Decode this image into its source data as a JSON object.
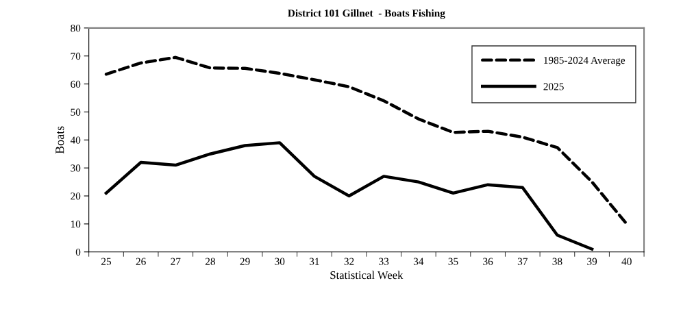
{
  "chart_data": {
    "type": "line",
    "title": "District 101 Gillnet  - Boats Fishing",
    "xlabel": "Statistical Week",
    "ylabel": "Boats",
    "categories": [
      "25",
      "26",
      "27",
      "28",
      "29",
      "30",
      "31",
      "32",
      "33",
      "34",
      "35",
      "36",
      "37",
      "38",
      "39",
      "40"
    ],
    "series": [
      {
        "name": "1985-2024 Average",
        "color": "#000000",
        "line_style": "dashed",
        "values": [
          63.5,
          67.5,
          69.5,
          65.7,
          65.6,
          63.8,
          61.5,
          59,
          54,
          47.5,
          42.7,
          43.1,
          41,
          37.3,
          25,
          10
        ]
      },
      {
        "name": "2025",
        "color": "#000000",
        "line_style": "solid",
        "values": [
          21,
          32,
          31,
          35,
          38,
          39,
          27,
          20,
          27,
          25,
          21,
          24,
          23,
          6,
          1,
          null
        ]
      }
    ],
    "ylim": [
      0,
      80
    ],
    "yticks": [
      0,
      10,
      20,
      30,
      40,
      50,
      60,
      70,
      80
    ],
    "grid": false,
    "legend": "top right",
    "marker": "none"
  }
}
